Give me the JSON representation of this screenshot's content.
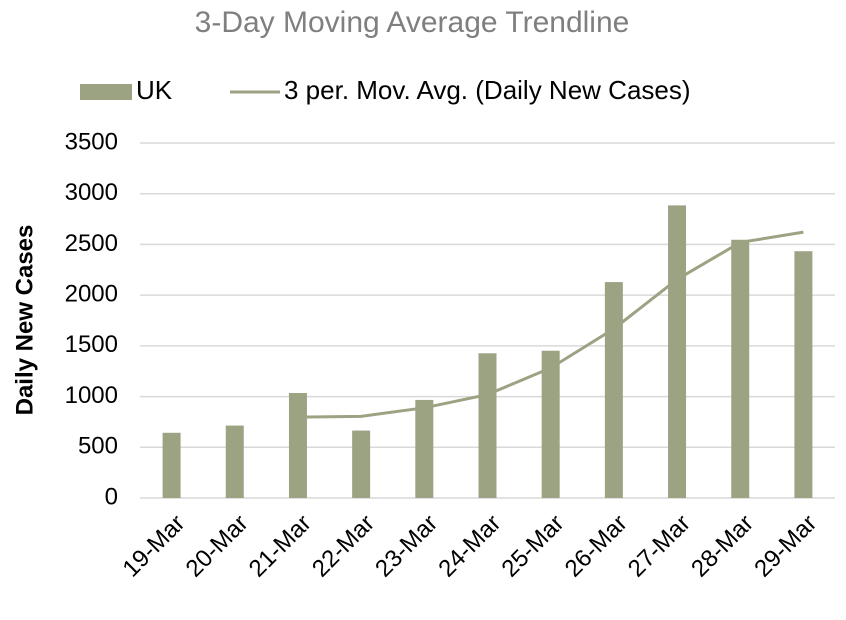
{
  "chart_data": {
    "type": "bar",
    "title": "3-Day Moving Average Trendline",
    "y_label": "Daily New Cases",
    "categories": [
      "19-Mar",
      "20-Mar",
      "21-Mar",
      "22-Mar",
      "23-Mar",
      "24-Mar",
      "25-Mar",
      "26-Mar",
      "27-Mar",
      "28-Mar",
      "29-Mar"
    ],
    "series": [
      {
        "name": "UK",
        "type": "bar",
        "color": "#9ca383",
        "values": [
          643,
          714,
          1035,
          665,
          967,
          1427,
          1452,
          2129,
          2885,
          2546,
          2433
        ]
      },
      {
        "name": "3 per. Mov. Avg. (Daily New Cases)",
        "type": "line",
        "color": "#9ca383",
        "values": [
          null,
          null,
          797,
          805,
          889,
          1020,
          1282,
          1669,
          2155,
          2520,
          2621
        ]
      }
    ],
    "ylim": [
      0,
      3500
    ],
    "yticks": [
      0,
      500,
      1000,
      1500,
      2000,
      2500,
      3000,
      3500
    ],
    "grid": true,
    "legend": "top"
  }
}
